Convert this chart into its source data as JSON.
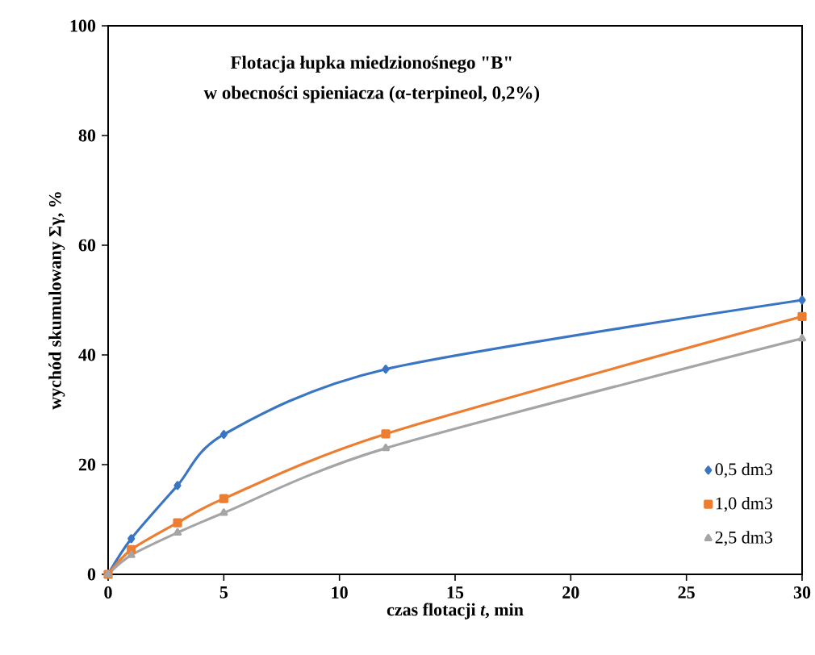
{
  "chart_data": {
    "type": "line",
    "title": "Flotacja łupka miedzionośnego \"B\"",
    "subtitle": "w obecności spieniacza (α-terpineol, 0,2%)",
    "xlabel": "czas flotacji *t*, min",
    "ylabel": "wychód skumulowany Σγ, %",
    "x": [
      0,
      1,
      3,
      5,
      12,
      30
    ],
    "series": [
      {
        "name": "0,5 dm3",
        "color": "#3a75c4",
        "marker": "diamond",
        "values": [
          0,
          6.5,
          16.2,
          25.5,
          37.4,
          50
        ]
      },
      {
        "name": "1,0 dm3",
        "color": "#ed7d31",
        "marker": "square",
        "values": [
          0,
          4.5,
          9.4,
          13.8,
          25.6,
          47
        ]
      },
      {
        "name": "2,5 dm3",
        "color": "#a5a5a5",
        "marker": "triangle",
        "values": [
          0,
          3.5,
          7.6,
          11.2,
          23,
          43
        ]
      }
    ],
    "xlim": [
      0,
      30
    ],
    "ylim": [
      0,
      100
    ],
    "xticks": [
      0,
      5,
      10,
      15,
      20,
      25,
      30
    ],
    "yticks": [
      0,
      20,
      40,
      60,
      80,
      100
    ],
    "legend": "bottom right",
    "grid": false
  }
}
